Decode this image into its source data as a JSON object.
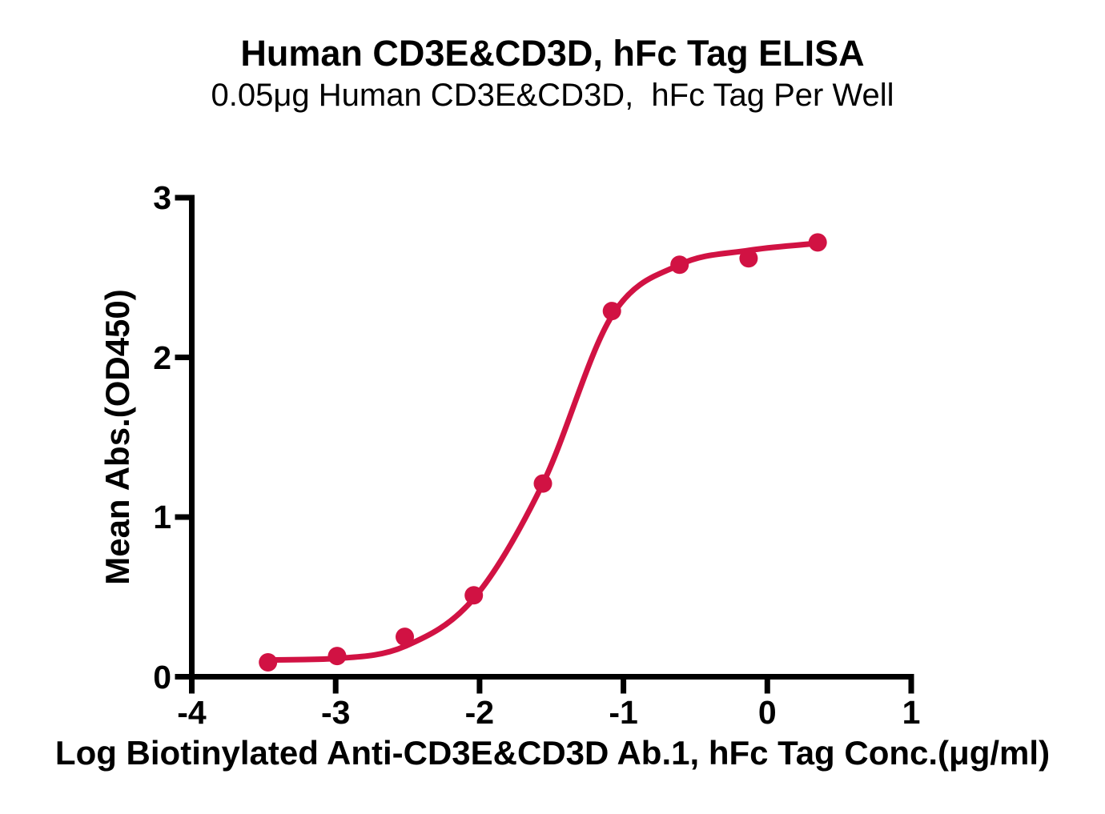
{
  "chart_data": {
    "type": "scatter",
    "title": "Human CD3E&CD3D, hFc Tag ELISA",
    "subtitle": "0.05μg Human CD3E&CD3D,  hFc Tag Per Well",
    "xlabel": "Log Biotinylated Anti-CD3E&CD3D Ab.1, hFc Tag Conc.(μg/ml)",
    "ylabel": "Mean Abs.(OD450)",
    "x": [
      -3.47,
      -2.99,
      -2.52,
      -2.04,
      -1.56,
      -1.08,
      -0.61,
      -0.13,
      0.35
    ],
    "y": [
      0.09,
      0.13,
      0.25,
      0.51,
      1.21,
      2.29,
      2.58,
      2.62,
      2.72
    ],
    "fit_curve_y": [
      0.105,
      0.115,
      0.19,
      0.49,
      1.21,
      2.26,
      2.58,
      2.67,
      2.715
    ],
    "x_ticks": [
      -4,
      -3,
      -2,
      -1,
      0,
      1
    ],
    "y_ticks": [
      0,
      1,
      2,
      3
    ],
    "xlim": [
      -4,
      1
    ],
    "ylim": [
      0,
      3
    ],
    "grid": false,
    "legend": null,
    "series_name": "Biotinylated Anti-CD3E&CD3D Ab.1, hFc Tag",
    "series_color": "#D11243",
    "axis_color": "#000000"
  }
}
